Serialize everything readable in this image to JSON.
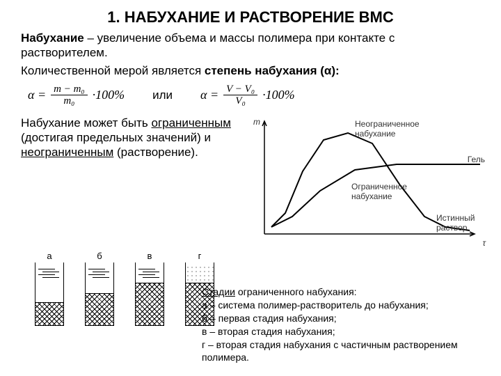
{
  "title": "1. НАБУХАНИЕ И РАСТВОРЕНИЕ ВМС",
  "para1_a": "Набухание",
  "para1_b": " – увеличение объема и массы полимера при контакте с растворителем.",
  "para2_a": "Количественной мерой является ",
  "para2_b": "степень набухания (α):",
  "or_word": "или",
  "formula_m": {
    "eq": "α =",
    "num": "m − m₀",
    "den": "m₀",
    "tail": "·100%"
  },
  "formula_v": {
    "eq": "α =",
    "num": "V − V₀",
    "den": "V₀",
    "tail": "·100%"
  },
  "mid_text_a": "Набухание может быть ",
  "mid_text_b": "ограниченным",
  "mid_text_c": " (достигая предельных значений) и ",
  "mid_text_d": "неограниченным",
  "mid_text_e": " (растворение).",
  "chart": {
    "y_label": "m",
    "x_label": "τ",
    "label_unlim": "Неограниченное набухание",
    "label_gel": "Гель",
    "label_lim": "Ограниченное набухание",
    "label_true": "Истинный раствор",
    "axis_color": "#000000",
    "curve_color": "#000000",
    "series_unlim": [
      [
        10,
        160
      ],
      [
        30,
        140
      ],
      [
        55,
        80
      ],
      [
        85,
        35
      ],
      [
        120,
        25
      ],
      [
        155,
        40
      ],
      [
        195,
        100
      ],
      [
        230,
        145
      ],
      [
        260,
        160
      ],
      [
        295,
        165
      ]
    ],
    "series_lim": [
      [
        10,
        160
      ],
      [
        40,
        145
      ],
      [
        80,
        108
      ],
      [
        130,
        78
      ],
      [
        190,
        70
      ],
      [
        260,
        70
      ],
      [
        310,
        70
      ]
    ]
  },
  "tubes": [
    {
      "label": "а",
      "hatch_height": 32,
      "liquid": true
    },
    {
      "label": "б",
      "hatch_height": 45,
      "liquid": true
    },
    {
      "label": "в",
      "hatch_height": 60,
      "liquid": true
    },
    {
      "label": "г",
      "hatch_height": 60,
      "liquid": false
    }
  ],
  "stages": {
    "title": "Стадии",
    "title2": " ограниченного набухания:",
    "items": [
      "а – система полимер-растворитель до набухания;",
      "б – первая стадия набухания;",
      "в – вторая стадия набухания;",
      "г – вторая стадия набухания с частичным растворением полимера."
    ]
  }
}
